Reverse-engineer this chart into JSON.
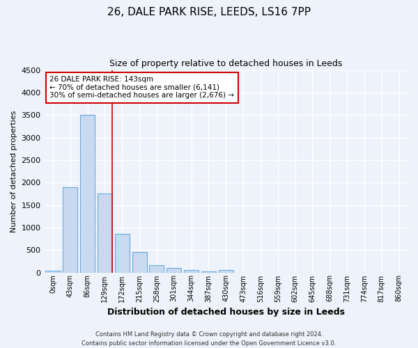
{
  "title1": "26, DALE PARK RISE, LEEDS, LS16 7PP",
  "title2": "Size of property relative to detached houses in Leeds",
  "xlabel": "Distribution of detached houses by size in Leeds",
  "ylabel": "Number of detached properties",
  "bar_labels": [
    "0sqm",
    "43sqm",
    "86sqm",
    "129sqm",
    "172sqm",
    "215sqm",
    "258sqm",
    "301sqm",
    "344sqm",
    "387sqm",
    "430sqm",
    "473sqm",
    "516sqm",
    "559sqm",
    "602sqm",
    "645sqm",
    "688sqm",
    "731sqm",
    "774sqm",
    "817sqm",
    "860sqm"
  ],
  "bar_values": [
    40,
    1900,
    3500,
    1760,
    860,
    450,
    170,
    95,
    55,
    30,
    55,
    0,
    0,
    0,
    0,
    0,
    0,
    0,
    0,
    0,
    0
  ],
  "bar_color": "#c8d9f0",
  "bar_edge_color": "#6aabdc",
  "vline_color": "#cc0000",
  "annotation_text": "26 DALE PARK RISE: 143sqm\n← 70% of detached houses are smaller (6,141)\n30% of semi-detached houses are larger (2,676) →",
  "annotation_box_color": "#ffffff",
  "annotation_box_edge": "#cc0000",
  "ylim": [
    0,
    4500
  ],
  "yticks": [
    0,
    500,
    1000,
    1500,
    2000,
    2500,
    3000,
    3500,
    4000,
    4500
  ],
  "footer1": "Contains HM Land Registry data © Crown copyright and database right 2024.",
  "footer2": "Contains public sector information licensed under the Open Government Licence v3.0.",
  "bg_color": "#eef2fa",
  "plot_bg_color": "#eef2fa",
  "grid_color": "#ffffff"
}
